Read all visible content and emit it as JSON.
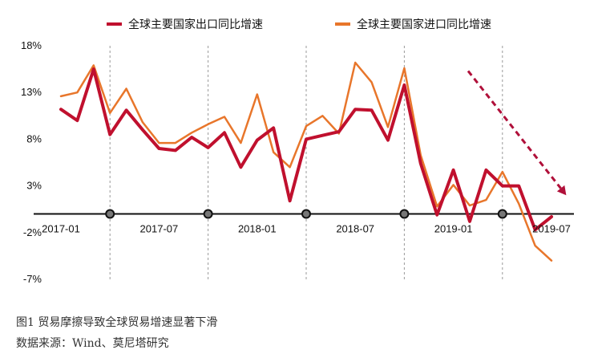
{
  "chart_data": {
    "type": "line",
    "legend": {
      "placement": "top-center"
    },
    "ylim": [
      -7,
      18
    ],
    "yticks": [
      {
        "value": 18,
        "label": "18%"
      },
      {
        "value": 13,
        "label": "13%"
      },
      {
        "value": 8,
        "label": "8%"
      },
      {
        "value": 3,
        "label": "3%"
      },
      {
        "value": -2,
        "label": "-2%"
      },
      {
        "value": -7,
        "label": "-7%"
      }
    ],
    "xticks": [
      {
        "index": 0,
        "label": "2017-01"
      },
      {
        "index": 6,
        "label": "2017-07"
      },
      {
        "index": 12,
        "label": "2018-01"
      },
      {
        "index": 18,
        "label": "2018-07"
      },
      {
        "index": 24,
        "label": "2019-01"
      },
      {
        "index": 30,
        "label": "2019-07"
      }
    ],
    "dashed_vlines_at_index": [
      3,
      9,
      15,
      21,
      27
    ],
    "markers_on_zero_at_index": [
      3,
      9,
      15,
      21,
      27
    ],
    "zero_line": true,
    "x": [
      "2017-01",
      "2017-02",
      "2017-03",
      "2017-04",
      "2017-05",
      "2017-06",
      "2017-07",
      "2017-08",
      "2017-09",
      "2017-10",
      "2017-11",
      "2017-12",
      "2018-01",
      "2018-02",
      "2018-03",
      "2018-04",
      "2018-05",
      "2018-06",
      "2018-07",
      "2018-08",
      "2018-09",
      "2018-10",
      "2018-11",
      "2018-12",
      "2019-01",
      "2019-02",
      "2019-03",
      "2019-04",
      "2019-05",
      "2019-06",
      "2019-07"
    ],
    "series": [
      {
        "name": "全球主要国家出口同比增速",
        "color": "#c0102e",
        "values": [
          11.2,
          10.0,
          15.5,
          8.5,
          11.1,
          9.0,
          7.0,
          6.8,
          8.2,
          7.1,
          8.7,
          5.0,
          7.9,
          9.2,
          1.4,
          8.0,
          8.4,
          8.8,
          11.2,
          11.1,
          7.9,
          13.8,
          5.4,
          -0.1,
          4.7,
          -0.8,
          4.7,
          3.0,
          3.0,
          -1.7,
          -0.3
        ]
      },
      {
        "name": "全球主要国家进口同比增速",
        "color": "#e8762b",
        "values": [
          12.6,
          13.0,
          15.9,
          10.8,
          13.4,
          9.8,
          7.6,
          7.6,
          8.7,
          9.6,
          10.4,
          7.6,
          12.8,
          6.6,
          5.0,
          9.4,
          10.5,
          8.6,
          16.2,
          14.1,
          9.3,
          15.6,
          6.3,
          0.8,
          3.1,
          0.9,
          1.5,
          4.5,
          1.1,
          -3.4,
          -5.0
        ]
      }
    ],
    "annotation_arrow": {
      "color": "#b0103a",
      "style": "dashed",
      "from": {
        "x": "2019-02",
        "y": 15.3
      },
      "to": {
        "x": "2019-08",
        "y": 2.0
      }
    }
  },
  "caption": {
    "line1": "图1  贸易摩擦导致全球贸易增速显著下滑",
    "line2": "数据来源：Wind、莫尼塔研究"
  }
}
